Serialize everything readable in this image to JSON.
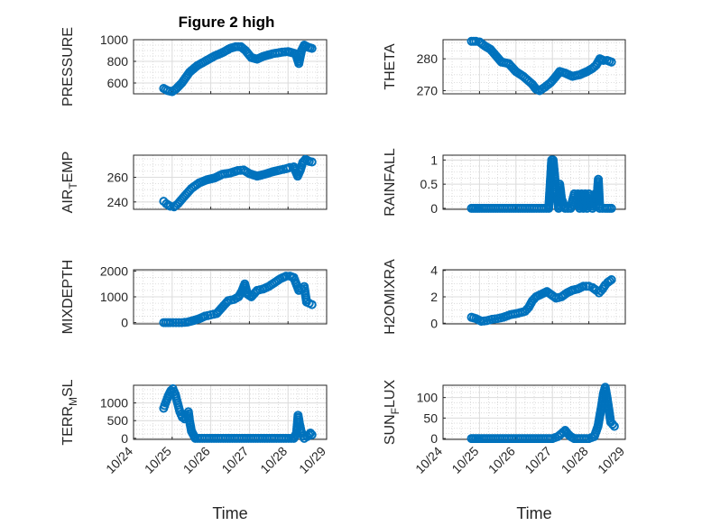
{
  "figure": {
    "title": "Figure 2 high",
    "marker_color": "#0072bd",
    "x_tick_labels": [
      "10/24",
      "10/25",
      "10/26",
      "10/27",
      "10/28",
      "10/29"
    ]
  },
  "chart_data": [
    {
      "type": "scatter",
      "title": "Figure 2 high",
      "ylabel": "PRESSURE",
      "xlabel": "",
      "xlim": [
        0,
        5
      ],
      "ylim": [
        500,
        1000
      ],
      "yticks": [
        600,
        800,
        1000
      ],
      "x_tick_labels": [
        "10/24",
        "10/25",
        "10/26",
        "10/27",
        "10/28",
        "10/29"
      ],
      "grid": true,
      "points": [
        [
          0.78,
          550
        ],
        [
          0.88,
          530
        ],
        [
          1.0,
          520
        ],
        [
          1.1,
          545
        ],
        [
          1.25,
          600
        ],
        [
          1.45,
          700
        ],
        [
          1.65,
          760
        ],
        [
          1.85,
          800
        ],
        [
          2.1,
          850
        ],
        [
          2.3,
          880
        ],
        [
          2.5,
          920
        ],
        [
          2.65,
          935
        ],
        [
          2.78,
          935
        ],
        [
          2.9,
          900
        ],
        [
          3.05,
          835
        ],
        [
          3.2,
          820
        ],
        [
          3.35,
          845
        ],
        [
          3.6,
          870
        ],
        [
          3.85,
          885
        ],
        [
          4.0,
          890
        ],
        [
          4.1,
          880
        ],
        [
          4.2,
          870
        ],
        [
          4.28,
          780
        ],
        [
          4.35,
          900
        ],
        [
          4.42,
          950
        ],
        [
          4.52,
          930
        ],
        [
          4.62,
          920
        ]
      ]
    },
    {
      "type": "scatter",
      "ylabel": "THETA",
      "xlabel": "",
      "xlim": [
        0,
        5
      ],
      "ylim": [
        269,
        286
      ],
      "yticks": [
        270,
        280
      ],
      "x_tick_labels": [
        "10/24",
        "10/25",
        "10/26",
        "10/27",
        "10/28",
        "10/29"
      ],
      "grid": true,
      "points": [
        [
          0.78,
          285.5
        ],
        [
          0.9,
          285.5
        ],
        [
          1.0,
          285.3
        ],
        [
          1.15,
          284.0
        ],
        [
          1.3,
          283.0
        ],
        [
          1.45,
          281.0
        ],
        [
          1.6,
          279.0
        ],
        [
          1.8,
          278.5
        ],
        [
          2.0,
          276.0
        ],
        [
          2.2,
          274.5
        ],
        [
          2.35,
          273.0
        ],
        [
          2.45,
          272.0
        ],
        [
          2.55,
          270.5
        ],
        [
          2.65,
          270.0
        ],
        [
          2.78,
          271.0
        ],
        [
          2.95,
          272.5
        ],
        [
          3.1,
          274.5
        ],
        [
          3.2,
          276.0
        ],
        [
          3.35,
          275.5
        ],
        [
          3.55,
          274.5
        ],
        [
          3.75,
          275.0
        ],
        [
          3.95,
          276.0
        ],
        [
          4.1,
          277.0
        ],
        [
          4.2,
          278.0
        ],
        [
          4.3,
          280.0
        ],
        [
          4.4,
          279.5
        ],
        [
          4.5,
          279.5
        ],
        [
          4.62,
          279.0
        ]
      ]
    },
    {
      "type": "scatter",
      "ylabel": "AIR_TEMP",
      "xlabel": "",
      "xlim": [
        0,
        5
      ],
      "ylim": [
        234,
        278
      ],
      "yticks": [
        240,
        260
      ],
      "x_tick_labels": [
        "10/24",
        "10/25",
        "10/26",
        "10/27",
        "10/28",
        "10/29"
      ],
      "grid": true,
      "points": [
        [
          0.78,
          240.5
        ],
        [
          0.85,
          238.5
        ],
        [
          0.95,
          236.5
        ],
        [
          1.05,
          236.0
        ],
        [
          1.15,
          238.5
        ],
        [
          1.3,
          244.0
        ],
        [
          1.5,
          251.0
        ],
        [
          1.7,
          255.5
        ],
        [
          1.9,
          258.0
        ],
        [
          2.1,
          259.5
        ],
        [
          2.3,
          262.5
        ],
        [
          2.5,
          263.5
        ],
        [
          2.7,
          265.5
        ],
        [
          2.85,
          266.0
        ],
        [
          3.0,
          263.0
        ],
        [
          3.2,
          261.0
        ],
        [
          3.4,
          262.5
        ],
        [
          3.6,
          264.5
        ],
        [
          3.8,
          266.0
        ],
        [
          3.95,
          267.0
        ],
        [
          4.05,
          268.0
        ],
        [
          4.15,
          268.5
        ],
        [
          4.25,
          261.0
        ],
        [
          4.32,
          266.0
        ],
        [
          4.38,
          272.0
        ],
        [
          4.45,
          274.5
        ],
        [
          4.55,
          273.0
        ],
        [
          4.62,
          272.5
        ]
      ]
    },
    {
      "type": "scatter",
      "ylabel": "RAINFALL",
      "xlabel": "",
      "xlim": [
        0,
        5
      ],
      "ylim": [
        -0.02,
        1.1
      ],
      "yticks": [
        0,
        0.5,
        1
      ],
      "ytick_labels": [
        "0",
        "0.5",
        "1"
      ],
      "x_tick_labels": [
        "10/24",
        "10/25",
        "10/26",
        "10/27",
        "10/28",
        "10/29"
      ],
      "grid": true,
      "points": [
        [
          0.78,
          0
        ],
        [
          1.0,
          0
        ],
        [
          1.25,
          0
        ],
        [
          1.5,
          0
        ],
        [
          1.75,
          0
        ],
        [
          2.0,
          0
        ],
        [
          2.25,
          0
        ],
        [
          2.5,
          0
        ],
        [
          2.7,
          0
        ],
        [
          2.9,
          0
        ],
        [
          2.98,
          1.0
        ],
        [
          3.02,
          1.0
        ],
        [
          3.06,
          0.7
        ],
        [
          3.1,
          0.3
        ],
        [
          3.14,
          0.25
        ],
        [
          3.17,
          0
        ],
        [
          3.2,
          0.5
        ],
        [
          3.25,
          0.2
        ],
        [
          3.35,
          0
        ],
        [
          3.5,
          0
        ],
        [
          3.6,
          0.3
        ],
        [
          3.7,
          0.3
        ],
        [
          3.75,
          0
        ],
        [
          3.8,
          0.3
        ],
        [
          3.85,
          0
        ],
        [
          3.9,
          0.3
        ],
        [
          3.95,
          0
        ],
        [
          4.0,
          0.3
        ],
        [
          4.05,
          0.2
        ],
        [
          4.1,
          0
        ],
        [
          4.18,
          0.3
        ],
        [
          4.22,
          0.2
        ],
        [
          4.26,
          0.6
        ],
        [
          4.3,
          0
        ],
        [
          4.45,
          0
        ],
        [
          4.62,
          0
        ]
      ]
    },
    {
      "type": "scatter",
      "ylabel": "MIXDEPTH",
      "xlabel": "",
      "xlim": [
        0,
        5
      ],
      "ylim": [
        -50,
        2050
      ],
      "yticks": [
        0,
        1000,
        2000
      ],
      "x_tick_labels": [
        "10/24",
        "10/25",
        "10/26",
        "10/27",
        "10/28",
        "10/29"
      ],
      "grid": true,
      "points": [
        [
          0.78,
          0
        ],
        [
          0.95,
          0
        ],
        [
          1.1,
          0
        ],
        [
          1.25,
          0
        ],
        [
          1.4,
          20
        ],
        [
          1.55,
          80
        ],
        [
          1.7,
          150
        ],
        [
          1.85,
          250
        ],
        [
          2.0,
          300
        ],
        [
          2.15,
          350
        ],
        [
          2.3,
          600
        ],
        [
          2.45,
          850
        ],
        [
          2.6,
          900
        ],
        [
          2.72,
          1000
        ],
        [
          2.8,
          1200
        ],
        [
          2.88,
          1500
        ],
        [
          2.95,
          1100
        ],
        [
          3.05,
          1000
        ],
        [
          3.2,
          1250
        ],
        [
          3.35,
          1300
        ],
        [
          3.5,
          1400
        ],
        [
          3.65,
          1550
        ],
        [
          3.8,
          1700
        ],
        [
          3.95,
          1800
        ],
        [
          4.05,
          1800
        ],
        [
          4.15,
          1750
        ],
        [
          4.2,
          1550
        ],
        [
          4.28,
          1250
        ],
        [
          4.35,
          1300
        ],
        [
          4.42,
          1400
        ],
        [
          4.48,
          800
        ],
        [
          4.55,
          750
        ],
        [
          4.62,
          700
        ]
      ]
    },
    {
      "type": "scatter",
      "ylabel": "H2OMIXRA",
      "xlabel": "",
      "xlim": [
        0,
        5
      ],
      "ylim": [
        -0.05,
        4.05
      ],
      "yticks": [
        0,
        2,
        4
      ],
      "x_tick_labels": [
        "10/24",
        "10/25",
        "10/26",
        "10/27",
        "10/28",
        "10/29"
      ],
      "grid": true,
      "points": [
        [
          0.78,
          0.45
        ],
        [
          0.9,
          0.35
        ],
        [
          1.05,
          0.15
        ],
        [
          1.2,
          0.2
        ],
        [
          1.35,
          0.3
        ],
        [
          1.5,
          0.35
        ],
        [
          1.65,
          0.45
        ],
        [
          1.85,
          0.65
        ],
        [
          2.05,
          0.75
        ],
        [
          2.25,
          0.9
        ],
        [
          2.35,
          1.2
        ],
        [
          2.45,
          1.7
        ],
        [
          2.55,
          2.0
        ],
        [
          2.7,
          2.2
        ],
        [
          2.85,
          2.4
        ],
        [
          2.95,
          2.2
        ],
        [
          3.1,
          1.9
        ],
        [
          3.25,
          2.0
        ],
        [
          3.4,
          2.3
        ],
        [
          3.55,
          2.5
        ],
        [
          3.7,
          2.6
        ],
        [
          3.85,
          2.8
        ],
        [
          4.0,
          2.8
        ],
        [
          4.1,
          2.7
        ],
        [
          4.2,
          2.5
        ],
        [
          4.28,
          2.3
        ],
        [
          4.38,
          2.6
        ],
        [
          4.45,
          2.9
        ],
        [
          4.52,
          3.1
        ],
        [
          4.62,
          3.3
        ]
      ]
    },
    {
      "type": "scatter",
      "ylabel": "TERR_MSL",
      "xlabel": "Time",
      "xlim": [
        0,
        5
      ],
      "ylim": [
        -30,
        1500
      ],
      "yticks": [
        0,
        500,
        1000
      ],
      "x_tick_labels": [
        "10/24",
        "10/25",
        "10/26",
        "10/27",
        "10/28",
        "10/29"
      ],
      "grid": true,
      "points": [
        [
          0.78,
          850
        ],
        [
          0.83,
          1000
        ],
        [
          0.9,
          1200
        ],
        [
          0.97,
          1350
        ],
        [
          1.02,
          1400
        ],
        [
          1.08,
          1250
        ],
        [
          1.14,
          1000
        ],
        [
          1.2,
          750
        ],
        [
          1.26,
          600
        ],
        [
          1.32,
          550
        ],
        [
          1.38,
          650
        ],
        [
          1.42,
          750
        ],
        [
          1.45,
          500
        ],
        [
          1.5,
          200
        ],
        [
          1.6,
          0
        ],
        [
          1.9,
          0
        ],
        [
          2.2,
          0
        ],
        [
          2.5,
          0
        ],
        [
          2.8,
          0
        ],
        [
          3.1,
          0
        ],
        [
          3.4,
          0
        ],
        [
          3.7,
          0
        ],
        [
          3.95,
          0
        ],
        [
          4.15,
          0
        ],
        [
          4.22,
          150
        ],
        [
          4.26,
          650
        ],
        [
          4.3,
          400
        ],
        [
          4.34,
          200
        ],
        [
          4.42,
          0
        ],
        [
          4.5,
          50
        ],
        [
          4.58,
          150
        ],
        [
          4.62,
          100
        ]
      ]
    },
    {
      "type": "scatter",
      "ylabel": "SUN_FLUX",
      "xlabel": "Time",
      "xlim": [
        0,
        5
      ],
      "ylim": [
        -2,
        130
      ],
      "yticks": [
        0,
        50,
        100
      ],
      "x_tick_labels": [
        "10/24",
        "10/25",
        "10/26",
        "10/27",
        "10/28",
        "10/29"
      ],
      "grid": true,
      "points": [
        [
          0.78,
          0
        ],
        [
          1.0,
          0
        ],
        [
          1.25,
          0
        ],
        [
          1.5,
          0
        ],
        [
          1.75,
          0
        ],
        [
          2.0,
          0
        ],
        [
          2.25,
          0
        ],
        [
          2.5,
          0
        ],
        [
          2.75,
          0
        ],
        [
          3.0,
          0
        ],
        [
          3.15,
          5
        ],
        [
          3.25,
          12
        ],
        [
          3.35,
          20
        ],
        [
          3.42,
          12
        ],
        [
          3.5,
          5
        ],
        [
          3.6,
          0
        ],
        [
          3.8,
          0
        ],
        [
          4.0,
          0
        ],
        [
          4.15,
          5
        ],
        [
          4.25,
          30
        ],
        [
          4.3,
          55
        ],
        [
          4.35,
          80
        ],
        [
          4.4,
          110
        ],
        [
          4.45,
          125
        ],
        [
          4.5,
          100
        ],
        [
          4.55,
          70
        ],
        [
          4.6,
          40
        ],
        [
          4.65,
          35
        ],
        [
          4.7,
          30
        ]
      ]
    }
  ]
}
